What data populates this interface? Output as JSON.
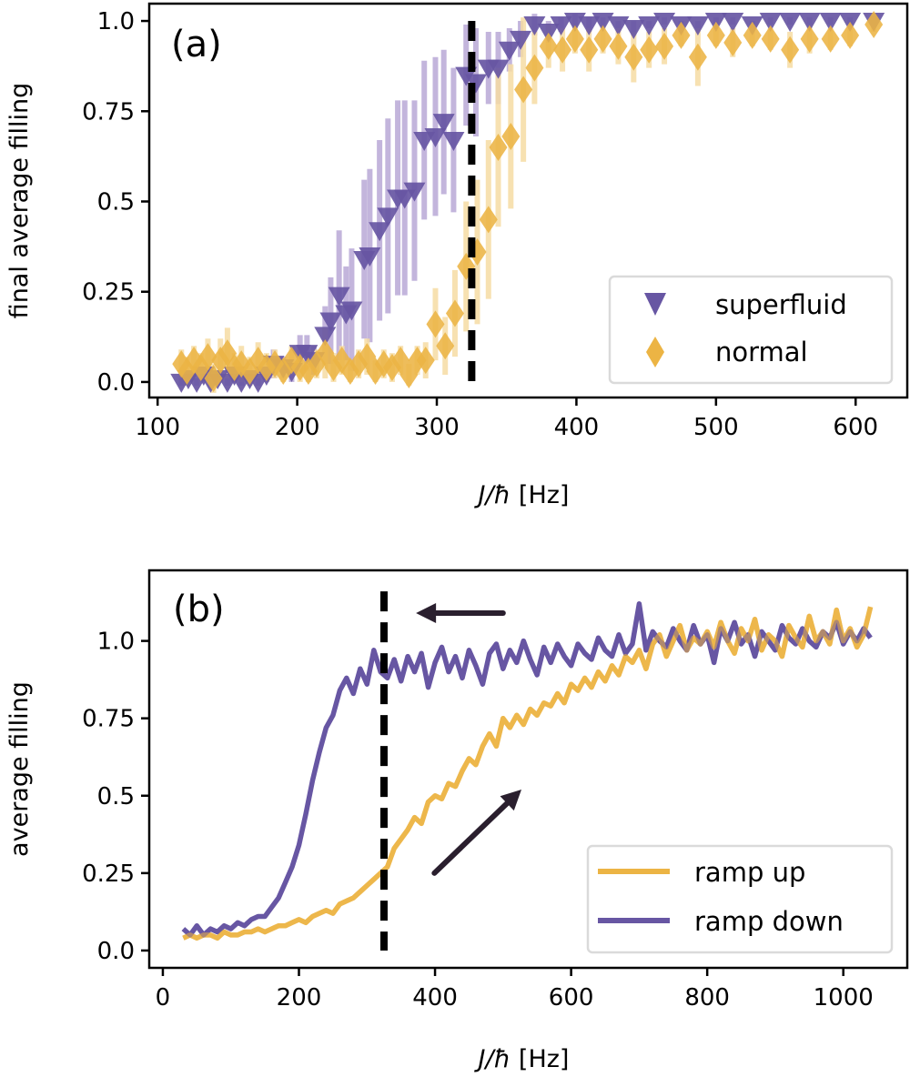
{
  "colors": {
    "superfluid": "#6756a3",
    "normal": "#ecb444",
    "superfluid_err": "#b9a9d6",
    "normal_err": "#f6dca4",
    "dashed": "#000000",
    "arrow": "#2a1f2e"
  },
  "chart_data": [
    {
      "type": "scatter",
      "panel_label": "(a)",
      "xlabel": "J/ħ [Hz]",
      "xlabel_italic": "J/ħ",
      "xlabel_unit": " [Hz]",
      "ylabel": "final average filling",
      "xlim": [
        94,
        637
      ],
      "ylim": [
        -0.043,
        1.048
      ],
      "xticks": [
        100,
        200,
        300,
        400,
        500,
        600
      ],
      "xtick_labels": [
        "100",
        "200",
        "300",
        "400",
        "500",
        "600"
      ],
      "yticks": [
        0,
        0.25,
        0.5,
        0.75,
        1.0
      ],
      "ytick_labels": [
        "0.0",
        "0.25",
        "0.5",
        "0.75",
        "1.0"
      ],
      "grid": false,
      "legend_position": "lower-right",
      "vline": {
        "x": 325,
        "style": "dashed",
        "y_range": [
          0,
          1.0
        ]
      },
      "series": [
        {
          "name": "superfluid",
          "marker": "triangle-down",
          "x": [
            117,
            122,
            128,
            133,
            138,
            143,
            150,
            155,
            160,
            166,
            172,
            178,
            183,
            190,
            196,
            202,
            207,
            212,
            220,
            224,
            230,
            235,
            239,
            248,
            252,
            259,
            265,
            272,
            277,
            284,
            291,
            299,
            305,
            312,
            321,
            328,
            337,
            344,
            352,
            360,
            370,
            380,
            389,
            399,
            409,
            419,
            430,
            441,
            452,
            463,
            475,
            487,
            500,
            512,
            526,
            539,
            553,
            567,
            582,
            596,
            613
          ],
          "y": [
            0.0,
            0.01,
            0.0,
            0.02,
            0.0,
            0.01,
            0.0,
            0.02,
            0.0,
            0.01,
            0.0,
            0.02,
            0.05,
            0.04,
            0.03,
            0.08,
            0.08,
            0.06,
            0.13,
            0.17,
            0.24,
            0.19,
            0.2,
            0.34,
            0.35,
            0.42,
            0.46,
            0.51,
            0.51,
            0.53,
            0.67,
            0.68,
            0.72,
            0.67,
            0.85,
            0.83,
            0.87,
            0.87,
            0.92,
            0.95,
            0.99,
            0.97,
            0.99,
            1.0,
            0.99,
            1.0,
            0.99,
            0.98,
            0.99,
            1.0,
            0.99,
            0.99,
            1.0,
            1.0,
            0.99,
            1.0,
            1.0,
            1.0,
            1.0,
            1.0,
            1.0
          ],
          "err": [
            0.01,
            0.01,
            0.01,
            0.01,
            0.01,
            0.02,
            0.01,
            0.02,
            0.01,
            0.02,
            0.01,
            0.02,
            0.04,
            0.03,
            0.03,
            0.05,
            0.05,
            0.04,
            0.08,
            0.12,
            0.18,
            0.13,
            0.17,
            0.22,
            0.24,
            0.25,
            0.27,
            0.27,
            0.27,
            0.25,
            0.22,
            0.22,
            0.2,
            0.2,
            0.14,
            0.15,
            0.1,
            0.1,
            0.06,
            0.05,
            0.03,
            0.03,
            0.02,
            0.02,
            0.02,
            0.01,
            0.01,
            0.02,
            0.01,
            0.01,
            0.01,
            0.01,
            0.01,
            0.01,
            0.01,
            0.01,
            0.01,
            0.01,
            0.01,
            0.01,
            0.01
          ]
        },
        {
          "name": "normal",
          "marker": "diamond",
          "x": [
            117,
            121,
            126,
            131,
            136,
            140,
            145,
            150,
            155,
            160,
            166,
            172,
            178,
            184,
            190,
            196,
            202,
            208,
            214,
            220,
            226,
            232,
            238,
            244,
            250,
            256,
            262,
            268,
            274,
            280,
            286,
            292,
            299,
            306,
            313,
            321,
            329,
            337,
            344,
            353,
            362,
            370,
            380,
            390,
            399,
            409,
            419,
            430,
            441,
            452,
            463,
            475,
            487,
            500,
            512,
            526,
            539,
            553,
            567,
            582,
            596,
            613
          ],
          "y": [
            0.05,
            0.03,
            0.06,
            0.04,
            0.07,
            0.01,
            0.06,
            0.08,
            0.04,
            0.05,
            0.03,
            0.06,
            0.04,
            0.05,
            0.03,
            0.06,
            0.04,
            0.03,
            0.05,
            0.08,
            0.04,
            0.06,
            0.03,
            0.05,
            0.07,
            0.03,
            0.05,
            0.04,
            0.06,
            0.02,
            0.06,
            0.06,
            0.16,
            0.1,
            0.19,
            0.32,
            0.36,
            0.45,
            0.65,
            0.68,
            0.81,
            0.87,
            0.93,
            0.92,
            0.95,
            0.92,
            0.95,
            0.93,
            0.9,
            0.92,
            0.93,
            0.96,
            0.9,
            0.96,
            0.94,
            0.96,
            0.95,
            0.92,
            0.95,
            0.95,
            0.96,
            0.99
          ],
          "err": [
            0.04,
            0.04,
            0.04,
            0.04,
            0.05,
            0.04,
            0.06,
            0.07,
            0.04,
            0.05,
            0.04,
            0.05,
            0.04,
            0.04,
            0.03,
            0.04,
            0.04,
            0.03,
            0.04,
            0.07,
            0.04,
            0.04,
            0.03,
            0.04,
            0.05,
            0.03,
            0.04,
            0.04,
            0.04,
            0.03,
            0.04,
            0.05,
            0.1,
            0.08,
            0.12,
            0.18,
            0.2,
            0.22,
            0.22,
            0.2,
            0.2,
            0.1,
            0.06,
            0.06,
            0.04,
            0.06,
            0.04,
            0.05,
            0.07,
            0.05,
            0.05,
            0.03,
            0.08,
            0.03,
            0.04,
            0.03,
            0.03,
            0.05,
            0.04,
            0.03,
            0.03,
            0.02
          ]
        }
      ]
    },
    {
      "type": "line",
      "panel_label": "(b)",
      "xlabel": "J/ħ [Hz]",
      "xlabel_italic": "J/ħ",
      "xlabel_unit": " [Hz]",
      "ylabel": "average filling",
      "xlim": [
        -20,
        1094
      ],
      "ylim": [
        -0.056,
        1.228
      ],
      "xticks": [
        0,
        200,
        400,
        600,
        800,
        1000
      ],
      "xtick_labels": [
        "0",
        "200",
        "400",
        "600",
        "800",
        "1000"
      ],
      "yticks": [
        0,
        0.25,
        0.5,
        0.75,
        1.0
      ],
      "ytick_labels": [
        "0.0",
        "0.25",
        "0.5",
        "0.75",
        "1.0"
      ],
      "grid": false,
      "legend_position": "lower-right",
      "vline": {
        "x": 325,
        "style": "dashed",
        "y_range": [
          0,
          1.16
        ]
      },
      "arrows": [
        {
          "from": [
            500,
            1.09
          ],
          "to": [
            372,
            1.09
          ]
        },
        {
          "from": [
            399,
            0.25
          ],
          "to": [
            527,
            0.52
          ]
        }
      ],
      "x": [
        30,
        40,
        50,
        60,
        70,
        80,
        90,
        100,
        110,
        120,
        130,
        140,
        150,
        160,
        170,
        180,
        190,
        200,
        210,
        220,
        230,
        240,
        250,
        260,
        270,
        280,
        290,
        300,
        310,
        320,
        330,
        340,
        350,
        360,
        370,
        380,
        390,
        400,
        410,
        420,
        430,
        440,
        450,
        460,
        470,
        480,
        490,
        500,
        510,
        520,
        530,
        540,
        550,
        560,
        570,
        580,
        590,
        600,
        610,
        620,
        630,
        640,
        650,
        660,
        670,
        680,
        690,
        700,
        710,
        720,
        730,
        740,
        750,
        760,
        770,
        780,
        790,
        800,
        810,
        820,
        830,
        840,
        850,
        860,
        870,
        880,
        890,
        900,
        910,
        920,
        930,
        940,
        950,
        960,
        970,
        980,
        990,
        1000,
        1010,
        1020,
        1030,
        1040
      ],
      "series": [
        {
          "name": "ramp up",
          "values": [
            0.04,
            0.05,
            0.04,
            0.05,
            0.05,
            0.04,
            0.06,
            0.05,
            0.05,
            0.06,
            0.06,
            0.07,
            0.06,
            0.07,
            0.08,
            0.08,
            0.09,
            0.1,
            0.09,
            0.11,
            0.12,
            0.13,
            0.12,
            0.15,
            0.16,
            0.17,
            0.19,
            0.21,
            0.23,
            0.25,
            0.27,
            0.33,
            0.36,
            0.39,
            0.43,
            0.41,
            0.48,
            0.5,
            0.49,
            0.54,
            0.53,
            0.58,
            0.62,
            0.6,
            0.66,
            0.7,
            0.66,
            0.75,
            0.72,
            0.76,
            0.73,
            0.78,
            0.76,
            0.8,
            0.79,
            0.83,
            0.8,
            0.86,
            0.84,
            0.88,
            0.85,
            0.9,
            0.87,
            0.92,
            0.89,
            0.95,
            0.93,
            0.97,
            0.91,
            0.99,
            1.02,
            0.95,
            1.0,
            1.05,
            0.97,
            1.01,
            0.99,
            1.03,
            0.98,
            1.06,
            1.0,
            0.96,
            1.04,
            1.0,
            1.07,
            0.97,
            1.02,
            1.0,
            0.95,
            1.05,
            1.01,
            0.98,
            1.08,
            1.0,
            1.03,
            0.99,
            1.1,
            1.0,
            1.04,
            0.98,
            1.02,
            1.11
          ]
        },
        {
          "name": "ramp down",
          "values": [
            0.07,
            0.05,
            0.08,
            0.05,
            0.07,
            0.06,
            0.08,
            0.07,
            0.09,
            0.08,
            0.1,
            0.11,
            0.11,
            0.14,
            0.17,
            0.22,
            0.27,
            0.34,
            0.44,
            0.55,
            0.64,
            0.72,
            0.76,
            0.84,
            0.88,
            0.83,
            0.91,
            0.86,
            0.97,
            0.9,
            0.88,
            0.94,
            0.87,
            0.95,
            0.9,
            0.96,
            0.85,
            0.93,
            0.98,
            0.9,
            0.95,
            0.88,
            0.97,
            0.92,
            0.86,
            0.96,
            0.99,
            0.91,
            0.97,
            0.93,
            1.0,
            0.94,
            0.89,
            0.98,
            0.93,
            0.99,
            0.95,
            0.92,
            0.99,
            0.96,
            0.94,
            1.01,
            0.97,
            0.95,
            1.02,
            0.96,
            0.99,
            1.12,
            0.97,
            1.03,
            1.0,
            0.98,
            1.04,
            1.0,
            0.97,
            1.05,
            0.99,
            1.02,
            0.93,
            1.04,
            1.0,
            1.06,
            0.99,
            1.02,
            0.95,
            1.03,
            1.0,
            0.97,
            1.05,
            1.01,
            0.99,
            1.04,
            1.0,
            0.98,
            1.03,
            1.01,
            1.06,
            0.99,
            1.03,
            1.0,
            1.04,
            1.01
          ]
        }
      ]
    }
  ]
}
